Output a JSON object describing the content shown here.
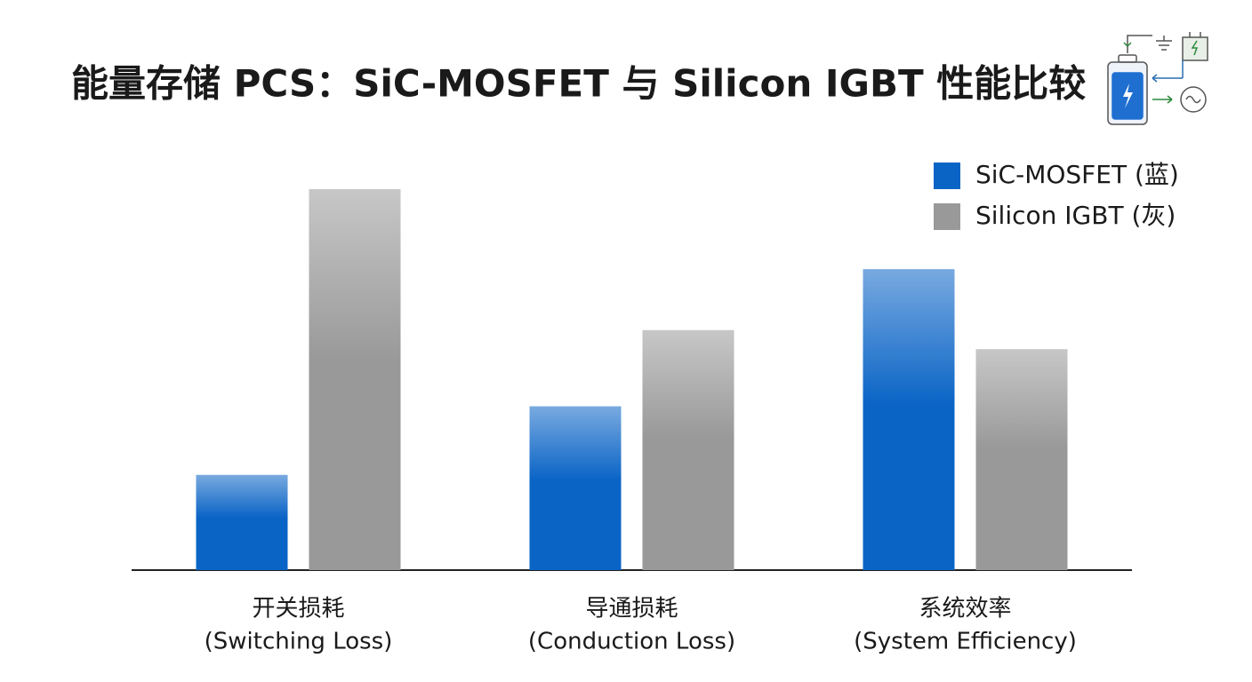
{
  "chart_data": {
    "type": "bar",
    "title": "能量存储 PCS：SiC-MOSFET 与 Silicon IGBT 性能比较",
    "categories": [
      [
        "开关损耗",
        "(Switching Loss)"
      ],
      [
        "导通损耗",
        "(Conduction Loss)"
      ],
      [
        "系统效率",
        "(System Efficiency)"
      ]
    ],
    "series": [
      {
        "name": "SiC-MOSFET (蓝)",
        "color": "#0a64c6",
        "values": [
          25,
          43,
          79
        ]
      },
      {
        "name": "Silicon IGBT (灰)",
        "color": "#999999",
        "values": [
          100,
          63,
          58
        ]
      }
    ],
    "ylim": [
      0,
      100
    ],
    "legend": "top-right"
  }
}
